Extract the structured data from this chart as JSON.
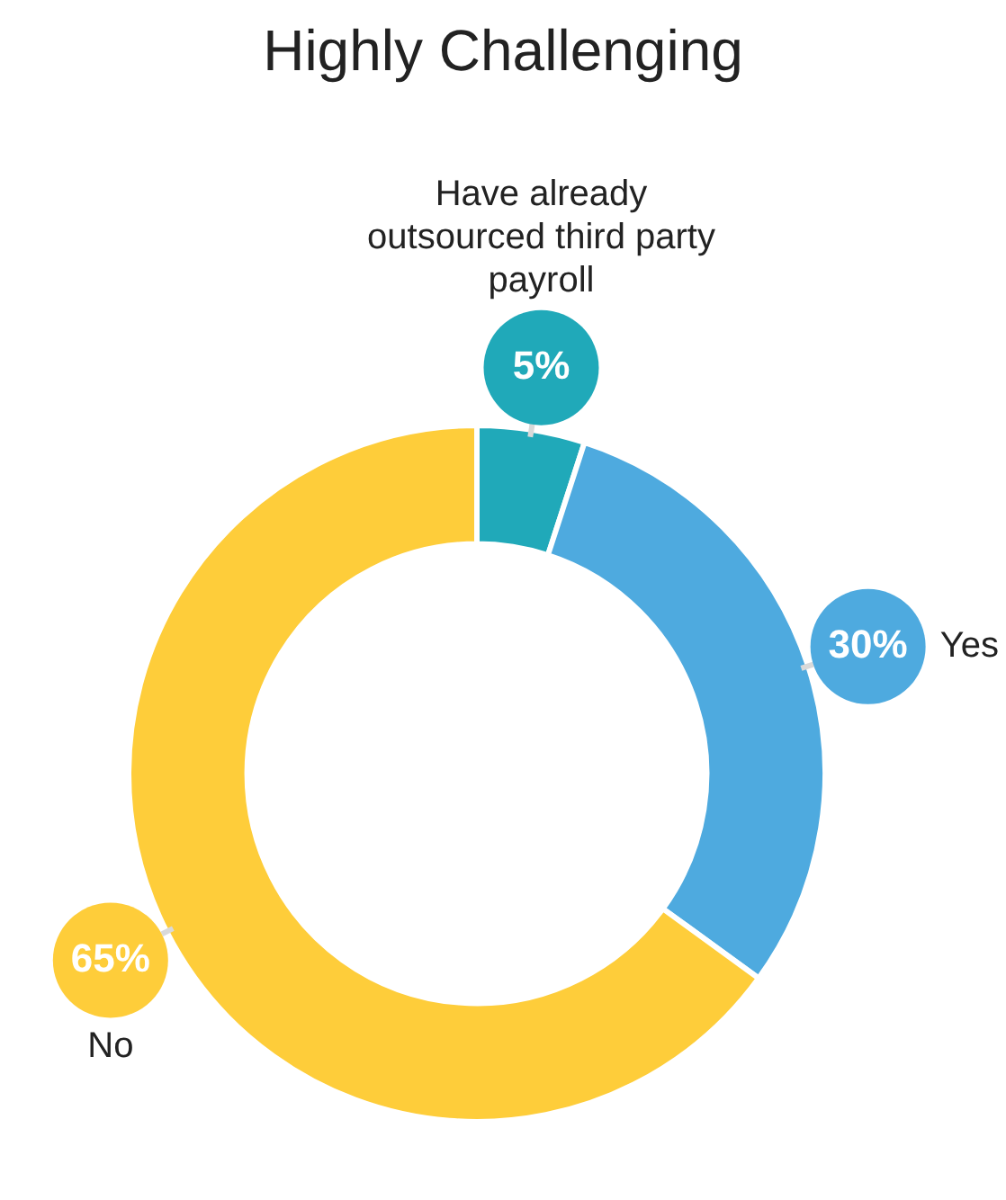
{
  "chart_data": {
    "type": "donut",
    "title": "Highly Challenging",
    "categories": [
      "Have already outsourced third party payroll",
      "Yes",
      "No"
    ],
    "values": [
      5,
      30,
      65
    ],
    "colors": [
      "#20a9b9",
      "#4eaadf",
      "#fecd3a"
    ],
    "value_labels": [
      "5%",
      "30%",
      "65%"
    ],
    "legend": false
  }
}
